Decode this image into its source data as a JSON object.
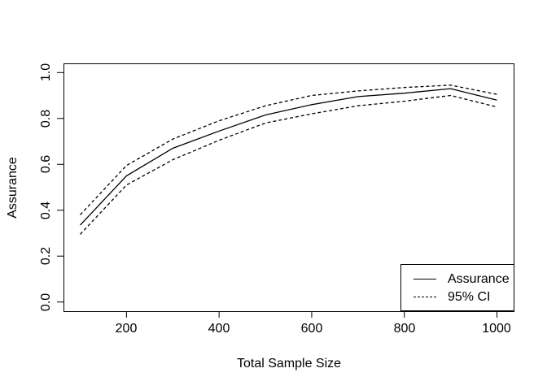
{
  "chart_data": {
    "type": "line",
    "title": "",
    "xlabel": "Total Sample Size",
    "ylabel": "Assurance",
    "x": [
      100,
      200,
      300,
      400,
      500,
      600,
      700,
      800,
      900,
      1000
    ],
    "series": [
      {
        "name": "Assurance",
        "style": "solid",
        "values": [
          0.335,
          0.55,
          0.67,
          0.745,
          0.815,
          0.86,
          0.895,
          0.91,
          0.93,
          0.88
        ]
      },
      {
        "name": "95% CI upper",
        "style": "dashed",
        "values": [
          0.38,
          0.595,
          0.71,
          0.79,
          0.855,
          0.9,
          0.92,
          0.935,
          0.945,
          0.905
        ]
      },
      {
        "name": "95% CI lower",
        "style": "dashed",
        "values": [
          0.295,
          0.51,
          0.62,
          0.705,
          0.78,
          0.82,
          0.855,
          0.875,
          0.9,
          0.85
        ]
      }
    ],
    "xlim": [
      100,
      1000
    ],
    "ylim": [
      0.0,
      1.0
    ],
    "x_ticks": [
      200,
      400,
      600,
      800,
      1000
    ],
    "y_tick_labels": [
      "0.0",
      "0.2",
      "0.4",
      "0.6",
      "0.8",
      "1.0"
    ],
    "grid": false,
    "legend": {
      "position": "bottomright",
      "entries": [
        {
          "label": "Assurance",
          "line_style": "solid"
        },
        {
          "label": "95% CI",
          "line_style": "dashed"
        }
      ]
    },
    "colors": {
      "line": "#000000",
      "background": "#ffffff"
    }
  }
}
